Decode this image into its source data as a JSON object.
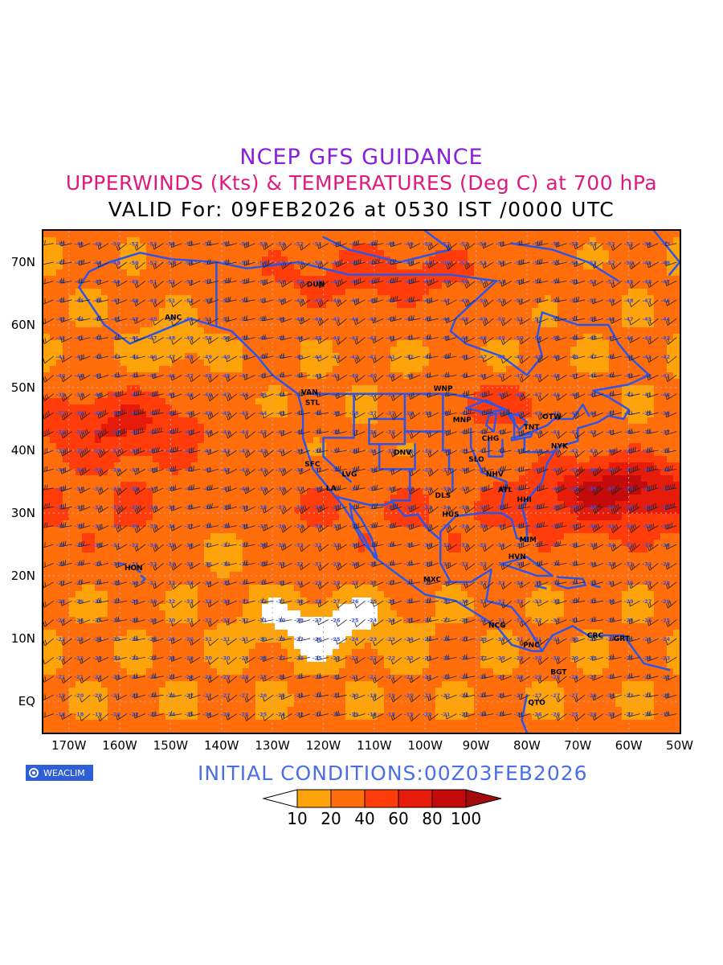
{
  "titles": {
    "line1": "NCEP GFS GUIDANCE",
    "line2": "UPPERWINDS (Kts) & TEMPERATURES (Deg C) at 700 hPa",
    "line3": "VALID For: 09FEB2026 at 0530 IST /0000 UTC"
  },
  "axes": {
    "lat_labels": [
      "70N",
      "60N",
      "50N",
      "40N",
      "30N",
      "20N",
      "10N",
      "EQ"
    ],
    "lon_labels": [
      "170W",
      "160W",
      "150W",
      "140W",
      "130W",
      "120W",
      "110W",
      "100W",
      "90W",
      "80W",
      "70W",
      "60W",
      "50W"
    ]
  },
  "stations": [
    {
      "name": "ANC",
      "lon": -149.9,
      "lat": 61.2
    },
    {
      "name": "DUN",
      "lon": -122.0,
      "lat": 66.5
    },
    {
      "name": "VAN",
      "lon": -123.1,
      "lat": 49.3
    },
    {
      "name": "STL",
      "lon": -122.3,
      "lat": 47.6
    },
    {
      "name": "WNP",
      "lon": -97.1,
      "lat": 49.9
    },
    {
      "name": "MNP",
      "lon": -93.3,
      "lat": 44.9
    },
    {
      "name": "OTW",
      "lon": -75.7,
      "lat": 45.4
    },
    {
      "name": "TNT",
      "lon": -79.4,
      "lat": 43.7
    },
    {
      "name": "CHG",
      "lon": -87.6,
      "lat": 41.9
    },
    {
      "name": "NYK",
      "lon": -74.0,
      "lat": 40.7
    },
    {
      "name": "DNV",
      "lon": -104.9,
      "lat": 39.7
    },
    {
      "name": "SLO",
      "lon": -90.2,
      "lat": 38.6
    },
    {
      "name": "SFC",
      "lon": -122.4,
      "lat": 37.8
    },
    {
      "name": "LVG",
      "lon": -115.1,
      "lat": 36.2
    },
    {
      "name": "NHV",
      "lon": -86.8,
      "lat": 36.2
    },
    {
      "name": "LA",
      "lon": -118.2,
      "lat": 34.0
    },
    {
      "name": "ATL",
      "lon": -84.4,
      "lat": 33.7
    },
    {
      "name": "DLS",
      "lon": -96.8,
      "lat": 32.8
    },
    {
      "name": "HHI",
      "lon": -80.7,
      "lat": 32.2
    },
    {
      "name": "HUS",
      "lon": -95.4,
      "lat": 29.8
    },
    {
      "name": "MIM",
      "lon": -80.2,
      "lat": 25.8
    },
    {
      "name": "HVN",
      "lon": -82.4,
      "lat": 23.1
    },
    {
      "name": "HON",
      "lon": -157.8,
      "lat": 21.3
    },
    {
      "name": "MXC",
      "lon": -99.1,
      "lat": 19.4
    },
    {
      "name": "NCG",
      "lon": -86.3,
      "lat": 12.1
    },
    {
      "name": "CRC",
      "lon": -66.9,
      "lat": 10.5
    },
    {
      "name": "GRT",
      "lon": -61.7,
      "lat": 10.0
    },
    {
      "name": "PNC",
      "lon": -79.5,
      "lat": 9.0
    },
    {
      "name": "BGT",
      "lon": -74.1,
      "lat": 4.7
    },
    {
      "name": "QTO",
      "lon": -78.5,
      "lat": -0.2
    }
  ],
  "legend": {
    "labels": [
      "10",
      "20",
      "40",
      "60",
      "80",
      "100"
    ],
    "colors": [
      "#ffffff",
      "#ffa30a",
      "#ff6e0a",
      "#ff3c0a",
      "#e61b0a",
      "#c40a0a",
      "#a50a0a"
    ]
  },
  "initial_conditions": "INITIAL  CONDITIONS:00Z03FEB2026",
  "logo": "WEACLIM",
  "colors": {
    "title1": "#8a1ee0",
    "title2": "#e0197f",
    "coastline": "#2f55e6",
    "grid": "#b0b0c8",
    "barb": "#222222",
    "temp_label": "#3a4fe0"
  }
}
